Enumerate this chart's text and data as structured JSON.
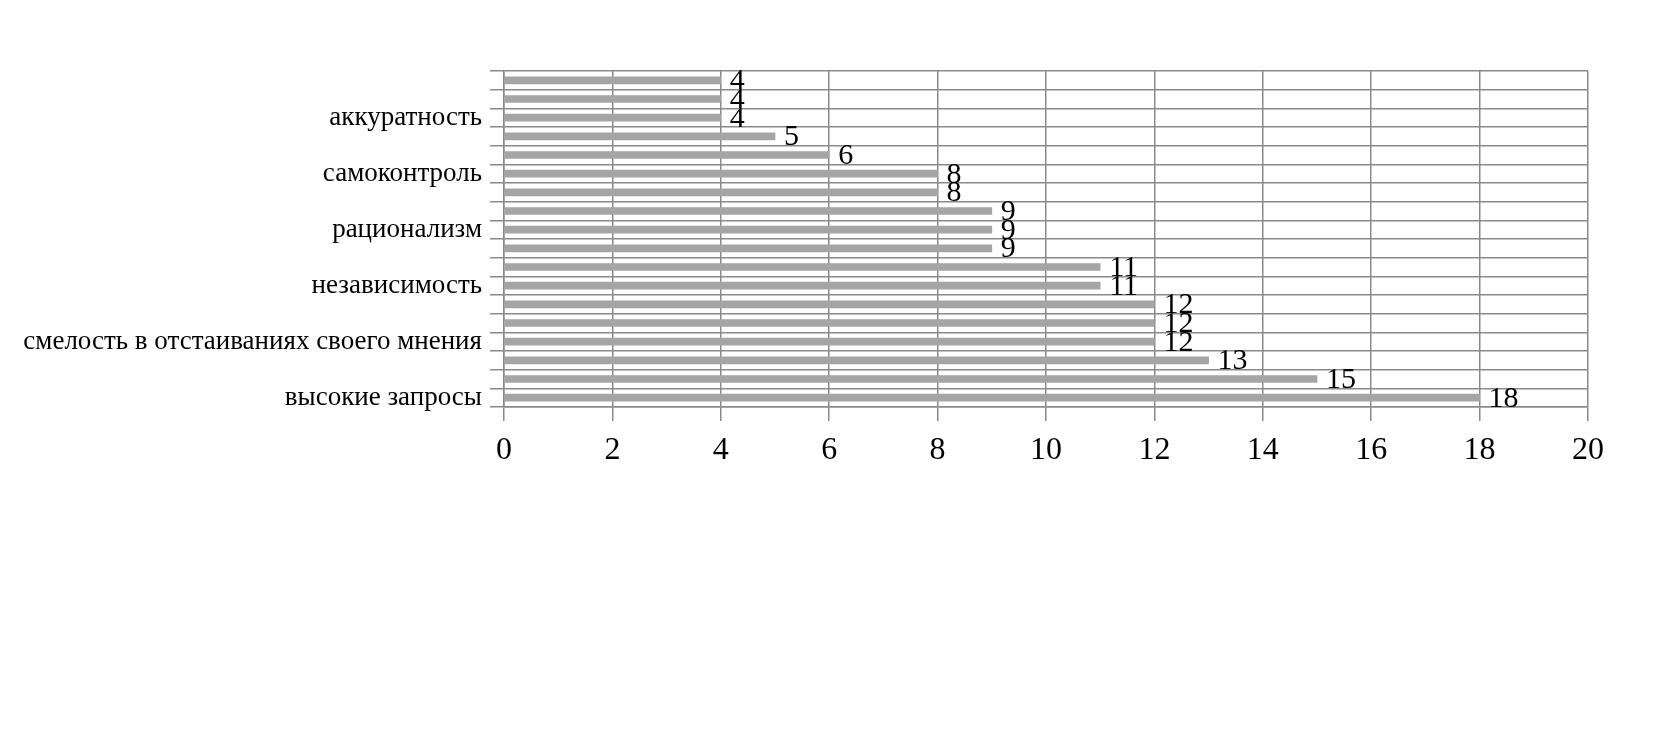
{
  "chart_data": {
    "type": "bar",
    "orientation": "horizontal",
    "categories": [
      null,
      null,
      "аккуратность",
      null,
      null,
      "самоконтроль",
      null,
      null,
      "рационализм",
      null,
      null,
      "независимость",
      null,
      null,
      "смелость в отстаиваниях своего мнения",
      null,
      null,
      "высокие запросы"
    ],
    "values": [
      4,
      4,
      4,
      5,
      6,
      8,
      8,
      9,
      9,
      9,
      11,
      11,
      12,
      12,
      12,
      13,
      15,
      18
    ],
    "color": "#a5a5a5",
    "xlim": [
      0,
      20
    ],
    "xticks": [
      0,
      2,
      4,
      6,
      8,
      10,
      12,
      14,
      16,
      18,
      20
    ],
    "grid": true,
    "data_labels": true
  }
}
